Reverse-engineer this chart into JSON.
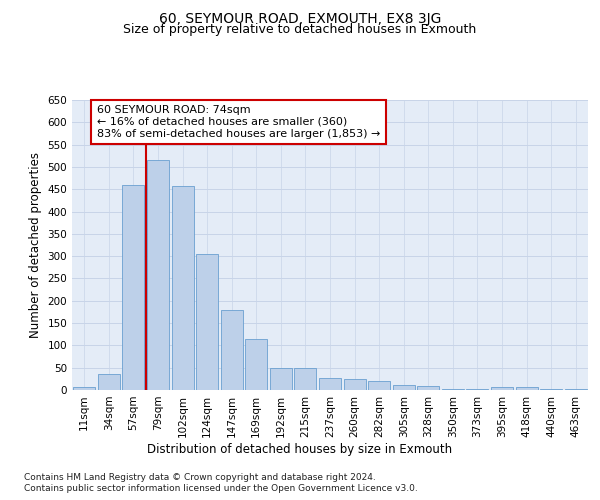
{
  "title": "60, SEYMOUR ROAD, EXMOUTH, EX8 3JG",
  "subtitle": "Size of property relative to detached houses in Exmouth",
  "xlabel": "Distribution of detached houses by size in Exmouth",
  "ylabel": "Number of detached properties",
  "categories": [
    "11sqm",
    "34sqm",
    "57sqm",
    "79sqm",
    "102sqm",
    "124sqm",
    "147sqm",
    "169sqm",
    "192sqm",
    "215sqm",
    "237sqm",
    "260sqm",
    "282sqm",
    "305sqm",
    "328sqm",
    "350sqm",
    "373sqm",
    "395sqm",
    "418sqm",
    "440sqm",
    "463sqm"
  ],
  "values": [
    7,
    35,
    460,
    515,
    458,
    305,
    180,
    115,
    50,
    50,
    27,
    25,
    20,
    12,
    8,
    2,
    3,
    6,
    6,
    3,
    3
  ],
  "bar_color": "#bdd0e9",
  "bar_edge_color": "#6a9fd0",
  "vline_color": "#cc0000",
  "annotation_text": "60 SEYMOUR ROAD: 74sqm\n← 16% of detached houses are smaller (360)\n83% of semi-detached houses are larger (1,853) →",
  "annotation_box_color": "#ffffff",
  "annotation_box_edge": "#cc0000",
  "ylim": [
    0,
    650
  ],
  "yticks": [
    0,
    50,
    100,
    150,
    200,
    250,
    300,
    350,
    400,
    450,
    500,
    550,
    600,
    650
  ],
  "grid_color": "#c8d4e8",
  "bg_color": "#e4ecf7",
  "footer_line1": "Contains HM Land Registry data © Crown copyright and database right 2024.",
  "footer_line2": "Contains public sector information licensed under the Open Government Licence v3.0.",
  "title_fontsize": 10,
  "subtitle_fontsize": 9,
  "axis_label_fontsize": 8.5,
  "tick_fontsize": 7.5,
  "footer_fontsize": 6.5
}
